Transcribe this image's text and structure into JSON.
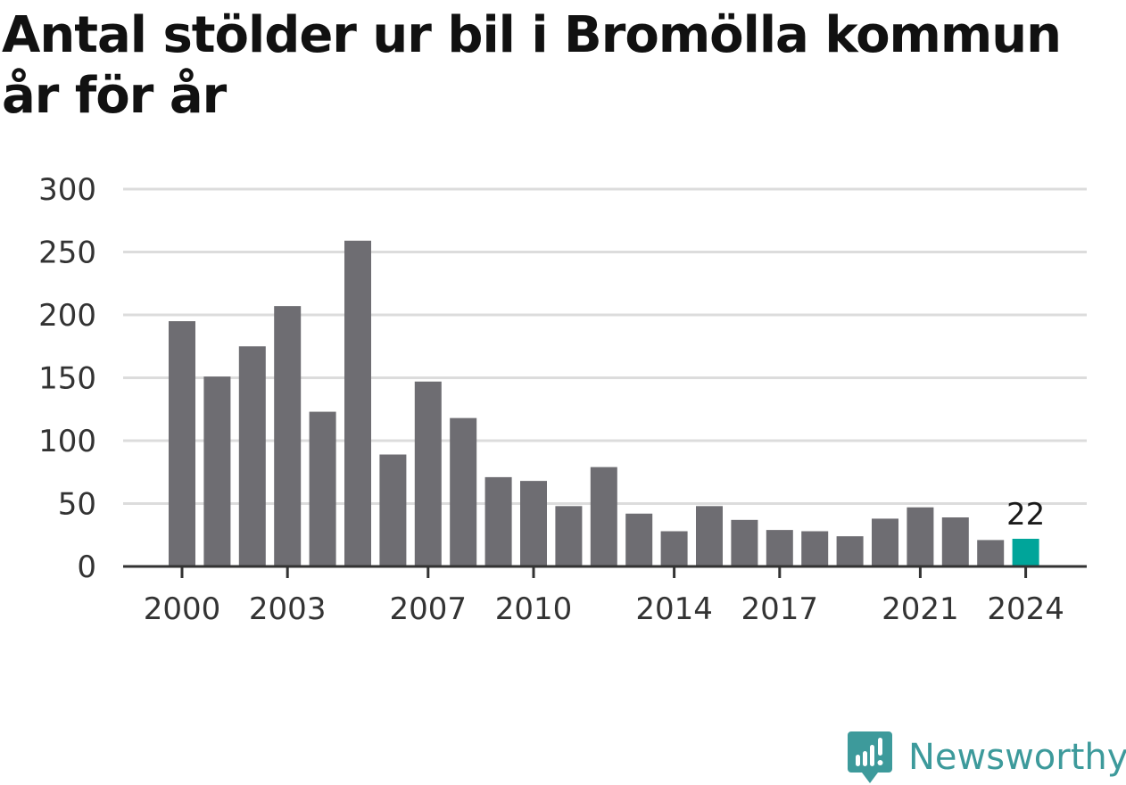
{
  "title": "Antal stölder ur bil i Bromölla kommun år för år",
  "brand": {
    "name": "Newsworthy",
    "icon": "newsworthy-logo-icon",
    "color": "#3d9a9b"
  },
  "colors": {
    "bar": "#6e6d72",
    "highlight": "#00a59a",
    "grid": "#dcdcdc",
    "axis": "#333333"
  },
  "chart_data": {
    "type": "bar",
    "title": "Antal stölder ur bil i Bromölla kommun år för år",
    "xlabel": "",
    "ylabel": "",
    "categories": [
      "2000",
      "2001",
      "2002",
      "2003",
      "2004",
      "2005",
      "2006",
      "2007",
      "2008",
      "2009",
      "2010",
      "2011",
      "2012",
      "2013",
      "2014",
      "2015",
      "2016",
      "2017",
      "2018",
      "2019",
      "2020",
      "2021",
      "2022",
      "2023",
      "2024"
    ],
    "values": [
      195,
      151,
      175,
      207,
      123,
      259,
      89,
      147,
      118,
      71,
      68,
      48,
      79,
      42,
      28,
      48,
      37,
      29,
      28,
      24,
      38,
      47,
      39,
      21,
      22
    ],
    "x_tick_labels": [
      "2000",
      "2003",
      "2007",
      "2010",
      "2014",
      "2017",
      "2021",
      "2024"
    ],
    "y_ticks": [
      0,
      50,
      100,
      150,
      200,
      250,
      300
    ],
    "ylim": [
      0,
      300
    ],
    "grid": true,
    "legend": "none",
    "highlight": {
      "category": "2024",
      "value_label": "22"
    }
  }
}
